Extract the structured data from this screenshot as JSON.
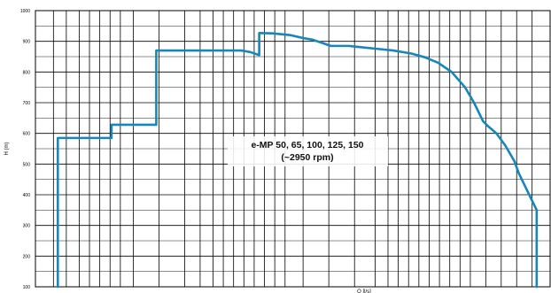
{
  "chart_data": {
    "type": "line",
    "title": "",
    "xlabel": "",
    "ylabel": "H (m)",
    "ylim": [
      100,
      1000
    ],
    "yticks": [
      "1000",
      "900",
      "800",
      "700",
      "600",
      "500",
      "400",
      "300",
      "200",
      "100"
    ],
    "annotation_line1": "e-MP 50, 65, 100, 125, 150",
    "annotation_line2": "(~2950 rpm)",
    "bottom_label": "Q [l/s]",
    "series": [
      {
        "color": "#1786b8",
        "points": [
          [
            5,
            100
          ],
          [
            5,
            585
          ],
          [
            17,
            585
          ],
          [
            17,
            628
          ],
          [
            27,
            628
          ],
          [
            27,
            870
          ],
          [
            46,
            870
          ],
          [
            48,
            865
          ],
          [
            50,
            855
          ],
          [
            50,
            927
          ],
          [
            53,
            926
          ],
          [
            57,
            920
          ],
          [
            60,
            910
          ],
          [
            62,
            905
          ],
          [
            65,
            890
          ],
          [
            66,
            885
          ],
          [
            70,
            885
          ],
          [
            72,
            882
          ],
          [
            76,
            876
          ],
          [
            80,
            870
          ],
          [
            84,
            860
          ],
          [
            87,
            848
          ],
          [
            90,
            830
          ],
          [
            93,
            800
          ],
          [
            96,
            750
          ],
          [
            98,
            700
          ],
          [
            100,
            640
          ],
          [
            101,
            625
          ],
          [
            103,
            600
          ],
          [
            105,
            560
          ],
          [
            107,
            510
          ],
          [
            108,
            470
          ],
          [
            110,
            410
          ],
          [
            111,
            380
          ],
          [
            112,
            350
          ],
          [
            112,
            100
          ]
        ]
      }
    ],
    "colors": {
      "grid": "#000000",
      "line": "#1786b8"
    }
  }
}
